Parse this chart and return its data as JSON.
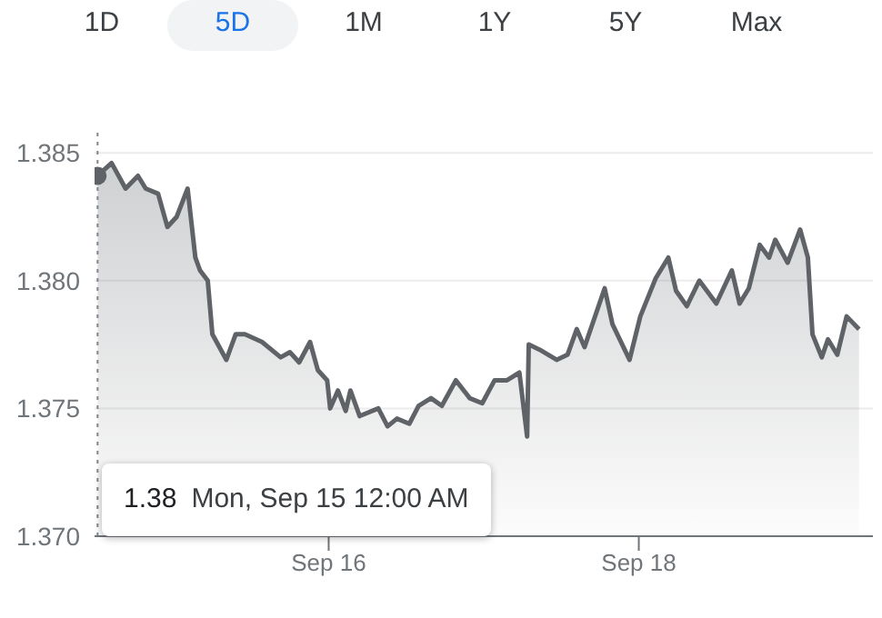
{
  "chart_data": {
    "type": "area",
    "series": [
      {
        "color": "#5f6368",
        "x": [
          "--09-14T12:14",
          "--09-14T14:24",
          "--09-14T16:34",
          "--09-14T18:29",
          "--09-14T19:41",
          "--09-14T21:36",
          "--09-14T23:02",
          "--09-15T00:29",
          "--09-15T02:10",
          "--09-15T03:22",
          "--09-15T04:05",
          "--09-15T05:17",
          "--09-15T06:00",
          "--09-15T08:10",
          "--09-15T09:36",
          "--09-15T11:02",
          "--09-15T13:41",
          "--09-15T16:34",
          "--09-15T18:00",
          "--09-15T19:26",
          "--09-15T21:07",
          "--09-15T22:19",
          "--09-15T23:46",
          "--09-16T00:14",
          "--09-16T01:26",
          "--09-16T02:38",
          "--09-16T03:22",
          "--09-16T04:48",
          "--09-16T07:41",
          "--09-16T09:07",
          "--09-16T10:34",
          "--09-16T12:29",
          "--09-16T13:55",
          "--09-16T15:50",
          "--09-16T17:31",
          "--09-16T19:41",
          "--09-16T21:50",
          "--09-16T23:46",
          "--09-17T01:41",
          "--09-17T03:36",
          "--09-17T05:31",
          "--09-17T06:43",
          "--09-17T06:58",
          "--09-17T08:38",
          "--09-17T11:17",
          "--09-17T12:58",
          "--09-17T14:24",
          "--09-17T15:36",
          "--09-17T18:43",
          "--09-17T19:55",
          "--09-17T22:34",
          "--09-18T00:14",
          "--09-18T02:38",
          "--09-18T04:34",
          "--09-18T05:46",
          "--09-18T07:26",
          "--09-18T09:22",
          "--09-18T12:00",
          "--09-18T14:24",
          "--09-18T15:36",
          "--09-18T17:02",
          "--09-18T18:43",
          "--09-18T20:10",
          "--09-18T21:07",
          "--09-18T23:02",
          "--09-19T00:58",
          "--09-19T02:10",
          "--09-19T02:53",
          "--09-19T04:19",
          "--09-19T05:17",
          "--09-19T06:43",
          "--09-19T08:10",
          "--09-19T10:05"
        ],
        "values": [
          1.3841,
          1.3846,
          1.3836,
          1.3841,
          1.3836,
          1.3834,
          1.3821,
          1.3825,
          1.3836,
          1.3809,
          1.3804,
          1.38,
          1.3779,
          1.3769,
          1.3779,
          1.3779,
          1.3776,
          1.377,
          1.3772,
          1.3768,
          1.3776,
          1.3765,
          1.3761,
          1.375,
          1.3757,
          1.3749,
          1.3757,
          1.3747,
          1.375,
          1.3743,
          1.3746,
          1.3744,
          1.3751,
          1.3754,
          1.3751,
          1.3761,
          1.3754,
          1.3752,
          1.3761,
          1.3761,
          1.3764,
          1.3739,
          1.3775,
          1.3773,
          1.3769,
          1.3771,
          1.3781,
          1.3774,
          1.3797,
          1.3783,
          1.3769,
          1.3786,
          1.3801,
          1.3809,
          1.3796,
          1.379,
          1.38,
          1.3791,
          1.3804,
          1.3791,
          1.3797,
          1.3814,
          1.3809,
          1.3816,
          1.3807,
          1.382,
          1.3809,
          1.3779,
          1.377,
          1.3777,
          1.3771,
          1.3786,
          1.3781
        ]
      },
      {
        "type": "scatter",
        "color": "#5f6368",
        "x": [
          "--09-14T12:14"
        ],
        "values": [
          1.3841
        ]
      }
    ],
    "xlim": [
      "--09-14T11:46",
      "--09-19T12:14"
    ],
    "xticks": [
      {
        "value": "--09-16",
        "label": "Sep 16"
      },
      {
        "value": "--09-18",
        "label": "Sep 18"
      }
    ],
    "ylim": [
      1.37,
      1.386
    ],
    "yticks": [
      {
        "value": 1.37,
        "label": "1.370"
      },
      {
        "value": 1.375,
        "label": "1.375"
      },
      {
        "value": 1.38,
        "label": "1.380"
      },
      {
        "value": 1.385,
        "label": "1.385"
      }
    ],
    "grid": "y",
    "ref_lines": [
      {
        "axis": "x",
        "value": "--09-14T12:14",
        "color": "#80868b",
        "line_style": "dotted"
      }
    ],
    "annotations": [
      "1D",
      "5D",
      "1M",
      "1Y",
      "5Y",
      "Max",
      "1.38",
      "Mon, Sep 15 12:00 AM"
    ]
  }
}
